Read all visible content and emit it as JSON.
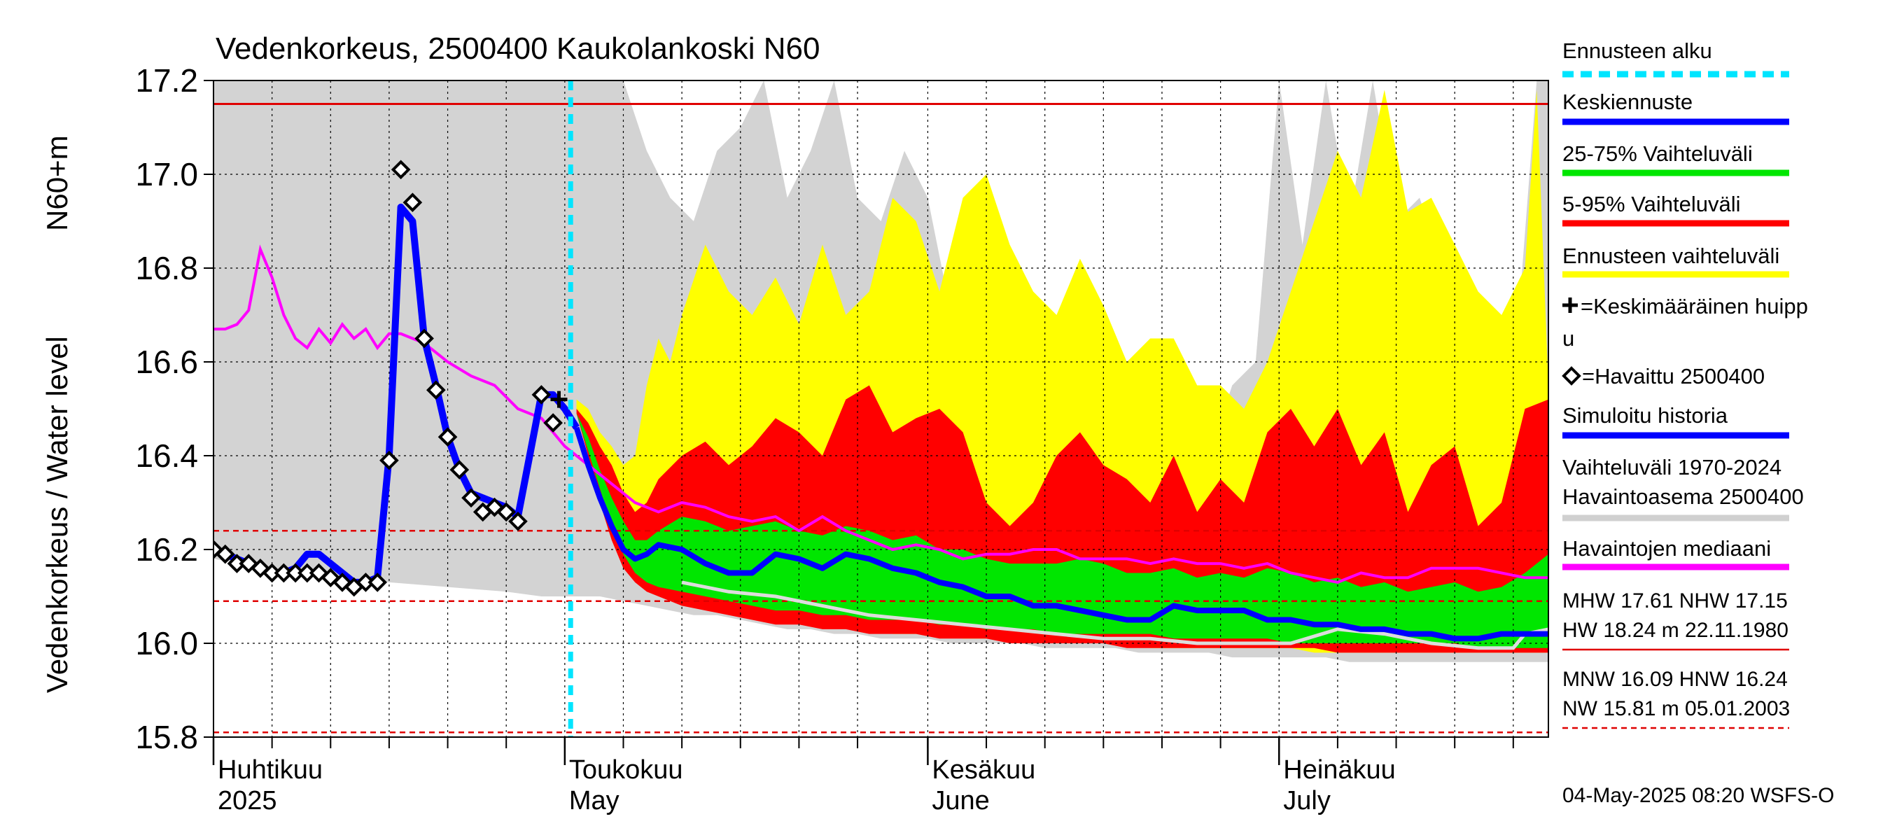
{
  "chart_data": {
    "type": "area",
    "title": "Vedenkorkeus, 2500400 Kaukolankoski N60",
    "ylabel_left": "Vedenkorkeus / Water level",
    "ylabel_unit": "N60+m",
    "ylim": [
      15.8,
      17.2
    ],
    "yticks": [
      "15.8",
      "16.0",
      "16.2",
      "16.4",
      "16.6",
      "16.8",
      "17.0",
      "17.2"
    ],
    "x_day_range": [
      0,
      114
    ],
    "x_month_labels": [
      {
        "line1": "Huhtikuu",
        "line2": "2025",
        "day": 0
      },
      {
        "line1": "Toukokuu",
        "line2": "May",
        "day": 30
      },
      {
        "line1": "Kesäkuu",
        "line2": "June",
        "day": 61
      },
      {
        "line1": "Heinäkuu",
        "line2": "July",
        "day": 91
      }
    ],
    "x_minor_ticks": [
      0,
      5,
      10,
      15,
      20,
      25,
      30,
      35,
      40,
      45,
      50,
      55,
      61,
      66,
      71,
      76,
      81,
      86,
      91,
      96,
      101,
      106,
      111
    ],
    "forecast_start_day": 30.5,
    "reference_lines": {
      "hnw_solid": 17.15,
      "hnw_dashed": 16.24,
      "mnw_dashed": 16.09,
      "nw_dashed": 15.81
    },
    "series": {
      "historical_range": {
        "x": [
          0,
          5,
          10,
          15,
          20,
          25,
          28,
          30,
          31,
          33,
          35,
          37,
          39,
          41,
          43,
          45,
          47,
          49,
          51,
          53,
          55,
          57,
          59,
          61,
          63,
          65,
          67,
          69,
          71,
          73,
          75,
          77,
          79,
          81,
          83,
          85,
          87,
          89,
          91,
          93,
          95,
          97,
          99,
          101,
          103,
          105,
          107,
          109,
          111,
          113,
          114
        ],
        "upper": [
          17.2,
          17.2,
          17.2,
          17.2,
          17.2,
          17.2,
          17.2,
          17.2,
          17.2,
          17.2,
          17.2,
          17.05,
          16.95,
          16.9,
          17.05,
          17.1,
          17.2,
          16.95,
          17.05,
          17.2,
          16.95,
          16.9,
          17.05,
          16.95,
          16.7,
          16.65,
          16.6,
          16.7,
          16.6,
          16.5,
          16.55,
          16.6,
          16.45,
          16.6,
          16.5,
          16.4,
          16.55,
          16.6,
          17.2,
          16.85,
          17.2,
          16.9,
          17.2,
          16.9,
          16.95,
          16.8,
          16.6,
          16.7,
          16.55,
          17.2,
          17.2
        ],
        "lower": [
          16.18,
          16.16,
          16.14,
          16.13,
          16.12,
          16.11,
          16.1,
          16.1,
          16.1,
          16.1,
          16.09,
          16.08,
          16.07,
          16.06,
          16.06,
          16.05,
          16.04,
          16.03,
          16.03,
          16.02,
          16.02,
          16.01,
          16.01,
          16.01,
          16.0,
          16.0,
          16.0,
          16.0,
          15.99,
          15.99,
          15.99,
          15.99,
          15.98,
          15.98,
          15.98,
          15.98,
          15.97,
          15.97,
          15.97,
          15.97,
          15.97,
          15.96,
          15.96,
          15.96,
          15.96,
          15.96,
          15.96,
          15.96,
          15.96,
          15.96,
          15.96
        ]
      },
      "forecast_range": {
        "x": [
          31,
          32,
          33,
          34,
          35,
          36,
          37,
          38,
          39,
          40,
          42,
          44,
          46,
          48,
          50,
          52,
          54,
          56,
          58,
          60,
          62,
          64,
          66,
          68,
          70,
          72,
          74,
          76,
          78,
          80,
          82,
          84,
          86,
          88,
          90,
          92,
          94,
          96,
          98,
          100,
          102,
          104,
          106,
          108,
          110,
          112,
          113,
          114
        ],
        "upper": [
          16.52,
          16.5,
          16.45,
          16.42,
          16.38,
          16.4,
          16.55,
          16.65,
          16.6,
          16.7,
          16.85,
          16.75,
          16.7,
          16.78,
          16.68,
          16.85,
          16.7,
          16.75,
          16.95,
          16.9,
          16.75,
          16.95,
          17.0,
          16.85,
          16.75,
          16.7,
          16.82,
          16.72,
          16.6,
          16.65,
          16.65,
          16.55,
          16.55,
          16.5,
          16.6,
          16.75,
          16.9,
          17.05,
          16.95,
          17.18,
          16.92,
          16.95,
          16.85,
          16.75,
          16.7,
          16.8,
          17.18,
          16.55
        ],
        "lower": [
          16.5,
          16.42,
          16.35,
          16.28,
          16.22,
          16.17,
          16.14,
          16.12,
          16.1,
          16.09,
          16.08,
          16.07,
          16.06,
          16.05,
          16.04,
          16.04,
          16.03,
          16.03,
          16.02,
          16.02,
          16.02,
          16.01,
          16.01,
          16.01,
          16.0,
          16.0,
          16.0,
          16.0,
          16.0,
          15.99,
          15.99,
          15.99,
          15.99,
          15.99,
          15.99,
          15.99,
          15.98,
          15.98,
          15.98,
          15.98,
          15.98,
          15.98,
          15.98,
          15.98,
          15.98,
          15.98,
          15.98,
          15.98
        ]
      },
      "band_5_95": {
        "x": [
          31,
          32,
          33,
          34,
          35,
          36,
          37,
          38,
          40,
          42,
          44,
          46,
          48,
          50,
          52,
          54,
          56,
          58,
          60,
          62,
          64,
          66,
          68,
          70,
          72,
          74,
          76,
          78,
          80,
          82,
          84,
          86,
          88,
          90,
          92,
          94,
          96,
          98,
          100,
          102,
          104,
          106,
          108,
          110,
          112,
          114
        ],
        "upper": [
          16.5,
          16.47,
          16.42,
          16.38,
          16.32,
          16.28,
          16.3,
          16.35,
          16.4,
          16.43,
          16.38,
          16.42,
          16.48,
          16.45,
          16.4,
          16.52,
          16.55,
          16.45,
          16.48,
          16.5,
          16.45,
          16.3,
          16.25,
          16.3,
          16.4,
          16.45,
          16.38,
          16.35,
          16.3,
          16.4,
          16.28,
          16.35,
          16.3,
          16.45,
          16.5,
          16.42,
          16.5,
          16.38,
          16.45,
          16.28,
          16.38,
          16.42,
          16.25,
          16.3,
          16.5,
          16.52
        ],
        "lower": [
          16.49,
          16.4,
          16.3,
          16.22,
          16.16,
          16.13,
          16.11,
          16.1,
          16.08,
          16.07,
          16.06,
          16.05,
          16.04,
          16.04,
          16.03,
          16.03,
          16.02,
          16.02,
          16.02,
          16.01,
          16.01,
          16.01,
          16.0,
          16.0,
          16.0,
          16.0,
          16.0,
          15.99,
          15.99,
          15.99,
          15.99,
          15.99,
          15.99,
          15.99,
          15.99,
          15.99,
          15.98,
          15.98,
          15.98,
          15.98,
          15.98,
          15.98,
          15.98,
          15.98,
          15.98,
          15.98
        ]
      },
      "band_25_75": {
        "x": [
          31,
          32,
          33,
          34,
          35,
          36,
          37,
          38,
          40,
          42,
          44,
          46,
          48,
          50,
          52,
          54,
          56,
          58,
          60,
          62,
          64,
          66,
          68,
          70,
          72,
          74,
          76,
          78,
          80,
          82,
          84,
          86,
          88,
          90,
          92,
          94,
          96,
          98,
          100,
          102,
          104,
          106,
          108,
          110,
          112,
          114
        ],
        "upper": [
          16.49,
          16.44,
          16.37,
          16.31,
          16.26,
          16.22,
          16.22,
          16.24,
          16.27,
          16.26,
          16.24,
          16.25,
          16.26,
          16.24,
          16.23,
          16.25,
          16.24,
          16.22,
          16.23,
          16.2,
          16.2,
          16.18,
          16.17,
          16.17,
          16.17,
          16.18,
          16.17,
          16.15,
          16.15,
          16.16,
          16.14,
          16.15,
          16.14,
          16.16,
          16.15,
          16.13,
          16.14,
          16.12,
          16.13,
          16.11,
          16.12,
          16.13,
          16.11,
          16.12,
          16.15,
          16.19
        ],
        "lower": [
          16.49,
          16.41,
          16.33,
          16.25,
          16.19,
          16.15,
          16.13,
          16.12,
          16.11,
          16.1,
          16.09,
          16.08,
          16.07,
          16.07,
          16.06,
          16.06,
          16.05,
          16.05,
          16.05,
          16.04,
          16.04,
          16.03,
          16.03,
          16.03,
          16.02,
          16.02,
          16.02,
          16.02,
          16.02,
          16.01,
          16.01,
          16.01,
          16.01,
          16.01,
          16.0,
          16.0,
          16.0,
          16.0,
          16.0,
          16.0,
          16.0,
          16.0,
          15.99,
          15.99,
          15.99,
          15.99
        ]
      },
      "median": {
        "x": [
          0,
          1,
          2,
          3,
          4,
          5,
          6,
          7,
          8,
          9,
          10,
          11,
          12,
          13,
          14,
          15,
          16,
          17,
          18,
          20,
          22,
          24,
          26,
          28,
          30,
          32,
          34,
          36,
          38,
          40,
          42,
          44,
          46,
          48,
          50,
          52,
          54,
          56,
          58,
          60,
          62,
          64,
          66,
          68,
          70,
          72,
          74,
          76,
          78,
          80,
          82,
          84,
          86,
          88,
          90,
          92,
          94,
          96,
          98,
          100,
          102,
          104,
          106,
          108,
          110,
          112,
          114
        ],
        "values": [
          16.67,
          16.67,
          16.68,
          16.71,
          16.84,
          16.78,
          16.7,
          16.65,
          16.63,
          16.67,
          16.64,
          16.68,
          16.65,
          16.67,
          16.63,
          16.66,
          16.66,
          16.65,
          16.64,
          16.6,
          16.57,
          16.55,
          16.5,
          16.48,
          16.42,
          16.38,
          16.34,
          16.3,
          16.28,
          16.3,
          16.29,
          16.27,
          16.26,
          16.27,
          16.24,
          16.27,
          16.24,
          16.22,
          16.2,
          16.21,
          16.2,
          16.18,
          16.19,
          16.19,
          16.2,
          16.2,
          16.18,
          16.18,
          16.18,
          16.17,
          16.18,
          16.17,
          16.17,
          16.16,
          16.17,
          16.15,
          16.14,
          16.13,
          16.15,
          16.14,
          16.14,
          16.16,
          16.16,
          16.16,
          16.15,
          16.14,
          16.14
        ]
      },
      "simulated_history": {
        "x": [
          0,
          1,
          2,
          3,
          4,
          5,
          6,
          7,
          8,
          9,
          10,
          11,
          12,
          13,
          14,
          15,
          16,
          17,
          18,
          19,
          20,
          21,
          22,
          23,
          24,
          25,
          26,
          27,
          28,
          29,
          30,
          31
        ],
        "values": [
          16.2,
          16.19,
          16.18,
          16.17,
          16.16,
          16.15,
          16.15,
          16.16,
          16.19,
          16.19,
          16.17,
          16.15,
          16.13,
          16.13,
          16.14,
          16.4,
          16.93,
          16.9,
          16.65,
          16.55,
          16.44,
          16.37,
          16.32,
          16.31,
          16.3,
          16.29,
          16.27,
          16.4,
          16.53,
          16.53,
          16.5,
          16.46
        ]
      },
      "mean_forecast": {
        "x": [
          31,
          32,
          33,
          34,
          35,
          36,
          37,
          38,
          40,
          42,
          44,
          46,
          48,
          50,
          52,
          54,
          56,
          58,
          60,
          62,
          64,
          66,
          68,
          70,
          72,
          74,
          76,
          78,
          80,
          82,
          84,
          86,
          88,
          90,
          92,
          94,
          96,
          98,
          100,
          102,
          104,
          106,
          108,
          110,
          112,
          114
        ],
        "values": [
          16.46,
          16.38,
          16.31,
          16.25,
          16.2,
          16.18,
          16.19,
          16.21,
          16.2,
          16.17,
          16.15,
          16.15,
          16.19,
          16.18,
          16.16,
          16.19,
          16.18,
          16.16,
          16.15,
          16.13,
          16.12,
          16.1,
          16.1,
          16.08,
          16.08,
          16.07,
          16.06,
          16.05,
          16.05,
          16.08,
          16.07,
          16.07,
          16.07,
          16.05,
          16.05,
          16.04,
          16.04,
          16.03,
          16.03,
          16.02,
          16.02,
          16.01,
          16.01,
          16.02,
          16.02,
          16.02
        ]
      },
      "observed": {
        "x": [
          0,
          1,
          2,
          3,
          4,
          5,
          6,
          7,
          8,
          9,
          10,
          11,
          12,
          13,
          14,
          15,
          16,
          17,
          18,
          19,
          20,
          21,
          22,
          23,
          24,
          25,
          26,
          28,
          29
        ],
        "values": [
          16.2,
          16.19,
          16.17,
          16.17,
          16.16,
          16.15,
          16.15,
          16.15,
          16.15,
          16.15,
          16.14,
          16.13,
          16.12,
          16.13,
          16.13,
          16.39,
          17.01,
          16.94,
          16.65,
          16.54,
          16.44,
          16.37,
          16.31,
          16.28,
          16.29,
          16.28,
          16.26,
          16.53,
          16.47
        ]
      },
      "observed_lower_line": {
        "x": [
          40,
          44,
          48,
          52,
          56,
          60,
          64,
          68,
          72,
          76,
          80,
          84,
          88,
          92,
          96,
          100,
          104,
          108,
          111,
          112,
          114
        ],
        "values": [
          16.13,
          16.11,
          16.1,
          16.08,
          16.06,
          16.05,
          16.04,
          16.03,
          16.02,
          16.01,
          16.01,
          16.0,
          16.0,
          16.0,
          16.03,
          16.02,
          16.0,
          15.99,
          15.99,
          16.02,
          16.03
        ]
      },
      "average_peak": {
        "day": 29.5,
        "value": 16.52
      }
    },
    "legend": [
      {
        "label": "Ennusteen alku",
        "color": "#00e5ff",
        "style": "dashed"
      },
      {
        "label": "Keskiennuste",
        "color": "#0000ff",
        "style": "solid"
      },
      {
        "label": "25-75% Vaihteluväli",
        "color": "#00e600",
        "style": "solid"
      },
      {
        "label": "5-95% Vaihteluväli",
        "color": "#ff0000",
        "style": "solid"
      },
      {
        "label": "Ennusteen vaihteluväli",
        "color": "#ffff00",
        "style": "solid"
      },
      {
        "label": "=Keskimääräinen huipp",
        "label2": "u",
        "marker": "plus"
      },
      {
        "label": "=Havaittu 2500400",
        "marker": "diamond"
      },
      {
        "label": "Simuloitu historia",
        "color": "#0000ff",
        "style": "solid"
      },
      {
        "label": "Vaihteluväli 1970-2024",
        "label2": " Havaintoasema 2500400",
        "color": "#d0d0d0",
        "style": "solid"
      },
      {
        "label": "Havaintojen mediaani",
        "color": "#ff00ff",
        "style": "solid"
      }
    ],
    "stats": {
      "row1": "MHW  17.61 NHW  17.15",
      "row2": "HW  18.24 m 22.11.1980",
      "row3": "MNW  16.09 HNW  16.24",
      "row4": "NW  15.81 m 05.01.2003"
    },
    "footer": "04-May-2025 08:20 WSFS-O",
    "colors": {
      "gray": "#d3d3d3",
      "yellow": "#ffff00",
      "red": "#ff0000",
      "green": "#00e600",
      "blue": "#0000ff",
      "magenta": "#ff00ff",
      "cyan": "#00e5ff",
      "hline": "#e00000",
      "lightgray": "#dcdcdc"
    }
  }
}
